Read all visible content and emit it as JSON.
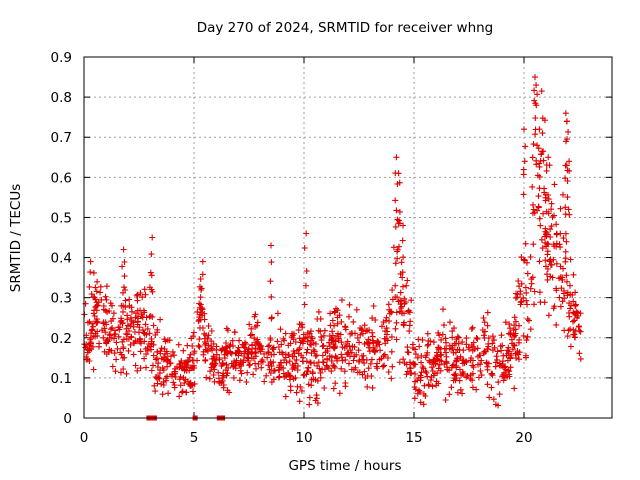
{
  "chart_data": {
    "type": "scatter",
    "title": "Day 270 of 2024, SRMTID for receiver whng",
    "xlabel": "GPS time / hours",
    "ylabel": "SRMTID / TECUs",
    "xlim": [
      0,
      24
    ],
    "ylim": [
      0,
      0.9
    ],
    "x_ticks": [
      "0",
      "5",
      "10",
      "15",
      "20"
    ],
    "x_tick_values": [
      0,
      5,
      10,
      15,
      20
    ],
    "y_ticks": [
      "0",
      "0.1",
      "0.2",
      "0.3",
      "0.4",
      "0.5",
      "0.6",
      "0.7",
      "0.8",
      "0.9"
    ],
    "y_tick_values": [
      0,
      0.1,
      0.2,
      0.3,
      0.4,
      0.5,
      0.6,
      0.7,
      0.8,
      0.9
    ],
    "grid": true,
    "marker": "plus",
    "color": "#e00000",
    "zero_markers_x": [
      2.95,
      3.1,
      3.2,
      5.05,
      6.15,
      6.3
    ],
    "trend": {
      "x": [
        0,
        0.5,
        1.0,
        1.5,
        2.0,
        2.5,
        3.0,
        3.2,
        3.5,
        4.0,
        4.5,
        5.0,
        5.3,
        5.5,
        6.0,
        6.5,
        7.0,
        7.5,
        8.0,
        8.5,
        9.0,
        9.5,
        10.0,
        10.5,
        11.0,
        11.5,
        12.0,
        12.5,
        13.0,
        13.5,
        14.0,
        14.3,
        14.6,
        15.0,
        15.5,
        16.0,
        16.5,
        17.0,
        17.5,
        18.0,
        18.5,
        19.0,
        19.5,
        20.0,
        20.3,
        20.5,
        20.8,
        21.0,
        21.3,
        21.5,
        21.8,
        22.0,
        22.3,
        22.6
      ],
      "y": [
        0.18,
        0.26,
        0.22,
        0.2,
        0.25,
        0.23,
        0.2,
        0.14,
        0.15,
        0.12,
        0.11,
        0.14,
        0.28,
        0.18,
        0.13,
        0.14,
        0.15,
        0.16,
        0.17,
        0.16,
        0.13,
        0.14,
        0.17,
        0.15,
        0.14,
        0.18,
        0.19,
        0.17,
        0.18,
        0.19,
        0.22,
        0.33,
        0.3,
        0.12,
        0.13,
        0.15,
        0.16,
        0.14,
        0.15,
        0.16,
        0.15,
        0.13,
        0.2,
        0.3,
        0.38,
        0.5,
        0.6,
        0.5,
        0.38,
        0.4,
        0.42,
        0.3,
        0.25,
        0.22
      ],
      "spread": [
        0.06,
        0.08,
        0.07,
        0.07,
        0.09,
        0.07,
        0.08,
        0.07,
        0.06,
        0.04,
        0.04,
        0.06,
        0.07,
        0.05,
        0.05,
        0.05,
        0.05,
        0.06,
        0.06,
        0.08,
        0.07,
        0.06,
        0.09,
        0.08,
        0.06,
        0.08,
        0.08,
        0.06,
        0.07,
        0.07,
        0.1,
        0.15,
        0.12,
        0.06,
        0.06,
        0.06,
        0.07,
        0.06,
        0.06,
        0.07,
        0.08,
        0.06,
        0.08,
        0.12,
        0.15,
        0.2,
        0.18,
        0.15,
        0.12,
        0.14,
        0.14,
        0.08,
        0.06,
        0.05
      ]
    },
    "peaks": [
      {
        "x": 0.3,
        "y": 0.39
      },
      {
        "x": 1.8,
        "y": 0.42
      },
      {
        "x": 3.1,
        "y": 0.45
      },
      {
        "x": 5.4,
        "y": 0.39
      },
      {
        "x": 8.5,
        "y": 0.43
      },
      {
        "x": 10.1,
        "y": 0.46
      },
      {
        "x": 14.2,
        "y": 0.65
      },
      {
        "x": 14.3,
        "y": 0.61
      },
      {
        "x": 14.5,
        "y": 0.48
      },
      {
        "x": 20.0,
        "y": 0.72
      },
      {
        "x": 20.5,
        "y": 0.85
      },
      {
        "x": 20.55,
        "y": 0.83
      },
      {
        "x": 20.7,
        "y": 0.72
      },
      {
        "x": 21.1,
        "y": 0.65
      },
      {
        "x": 21.9,
        "y": 0.76
      },
      {
        "x": 21.95,
        "y": 0.74
      },
      {
        "x": 22.05,
        "y": 0.64
      }
    ]
  }
}
